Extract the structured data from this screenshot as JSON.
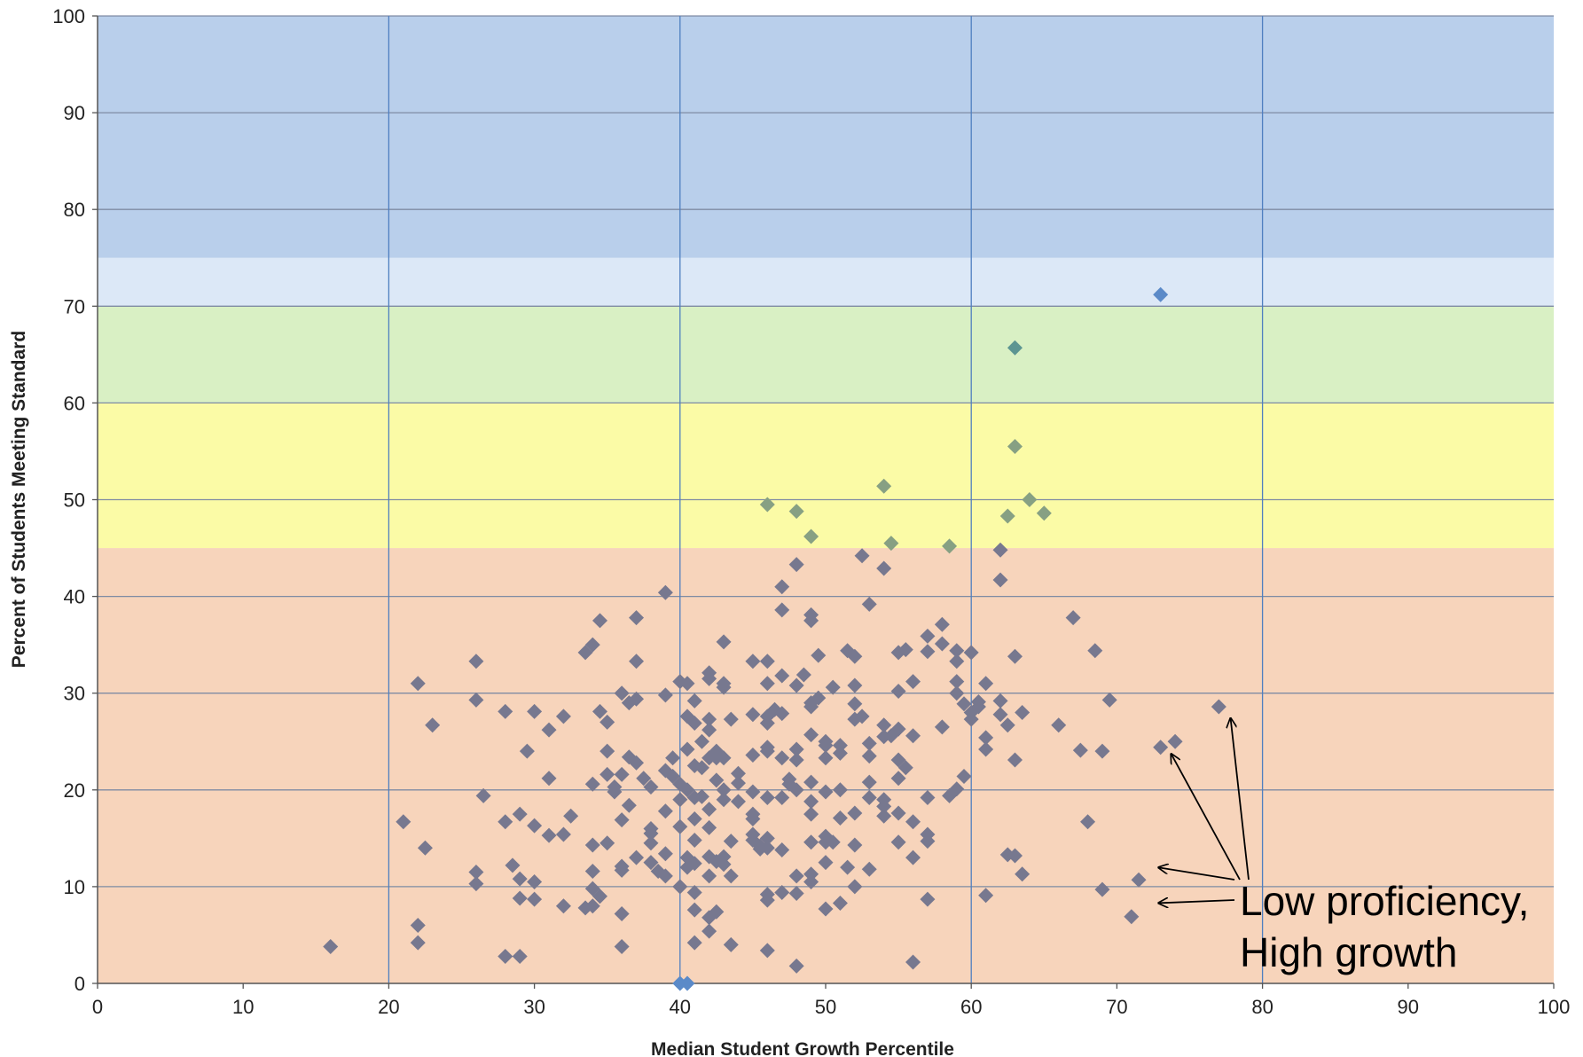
{
  "chart_data": {
    "type": "scatter",
    "title": "",
    "xlabel": "Median Student Growth Percentile",
    "ylabel": "Percent of Students Meeting Standard",
    "xlim": [
      0,
      100
    ],
    "ylim": [
      0,
      100
    ],
    "x_ticks": [
      "0",
      "10",
      "20",
      "30",
      "40",
      "50",
      "60",
      "70",
      "80",
      "90",
      "100"
    ],
    "y_ticks": [
      "0",
      "10",
      "20",
      "30",
      "40",
      "50",
      "60",
      "70",
      "80",
      "90",
      "100"
    ],
    "grid": {
      "horizontal": true,
      "vertical_at": [
        20,
        40,
        60,
        80
      ]
    },
    "bands": [
      {
        "from": 0,
        "to": 45,
        "color": "#f7d4bb"
      },
      {
        "from": 45,
        "to": 60,
        "color": "#fbfba6"
      },
      {
        "from": 60,
        "to": 70,
        "color": "#d9f0c4"
      },
      {
        "from": 70,
        "to": 75,
        "color": "#dce8f7"
      },
      {
        "from": 75,
        "to": 100,
        "color": "#b9cfeb"
      }
    ],
    "colors": {
      "orange_band_point": "#77788f",
      "yellow_band_point": "#87a083",
      "green_band_point": "#5c9592",
      "top_band_point": "#5b8ac8",
      "grid_horizontal": "#7f8ba3",
      "grid_vertical": "#4f7fc0"
    },
    "points": [
      [
        16,
        3.8
      ],
      [
        21,
        16.7
      ],
      [
        22,
        31
      ],
      [
        22,
        6
      ],
      [
        22,
        4.2
      ],
      [
        22.5,
        14
      ],
      [
        23,
        26.7
      ],
      [
        26,
        33.3
      ],
      [
        26,
        29.3
      ],
      [
        26,
        11.5
      ],
      [
        26,
        10.3
      ],
      [
        26.5,
        19.4
      ],
      [
        28,
        28.1
      ],
      [
        28,
        16.7
      ],
      [
        28,
        2.8
      ],
      [
        28.5,
        12.2
      ],
      [
        29,
        17.5
      ],
      [
        29,
        10.8
      ],
      [
        29,
        8.8
      ],
      [
        29,
        2.8
      ],
      [
        29.5,
        24
      ],
      [
        30,
        28.1
      ],
      [
        30,
        16.3
      ],
      [
        30,
        10.5
      ],
      [
        30,
        8.7
      ],
      [
        31,
        26.2
      ],
      [
        31,
        21.2
      ],
      [
        31,
        15.3
      ],
      [
        32,
        27.6
      ],
      [
        32,
        15.4
      ],
      [
        32,
        8
      ],
      [
        32.5,
        17.3
      ],
      [
        33.5,
        34.2
      ],
      [
        33.5,
        7.8
      ],
      [
        34,
        35
      ],
      [
        34,
        20.6
      ],
      [
        34,
        14.3
      ],
      [
        34,
        11.6
      ],
      [
        34,
        9.8
      ],
      [
        34,
        8
      ],
      [
        34.5,
        37.5
      ],
      [
        34.5,
        28.1
      ],
      [
        34.5,
        9
      ],
      [
        35,
        27
      ],
      [
        35,
        24
      ],
      [
        35,
        21.6
      ],
      [
        35,
        14.5
      ],
      [
        35.5,
        20.3
      ],
      [
        35.5,
        19.8
      ],
      [
        36,
        30
      ],
      [
        36,
        21.6
      ],
      [
        36,
        16.9
      ],
      [
        36,
        12.1
      ],
      [
        36,
        11.7
      ],
      [
        36,
        7.2
      ],
      [
        36,
        3.8
      ],
      [
        36.5,
        29
      ],
      [
        36.5,
        23.4
      ],
      [
        36.5,
        18.4
      ],
      [
        37,
        37.8
      ],
      [
        37,
        33.3
      ],
      [
        37,
        29.4
      ],
      [
        37,
        22.8
      ],
      [
        37,
        13
      ],
      [
        37.5,
        21.2
      ],
      [
        38,
        20.3
      ],
      [
        38,
        16
      ],
      [
        38,
        15.5
      ],
      [
        38,
        14.5
      ],
      [
        38,
        12.5
      ],
      [
        38.5,
        11.6
      ],
      [
        39,
        40.4
      ],
      [
        39,
        29.8
      ],
      [
        39,
        22
      ],
      [
        39,
        17.8
      ],
      [
        39,
        13.4
      ],
      [
        39,
        11.1
      ],
      [
        39.5,
        23.3
      ],
      [
        39.5,
        21.4
      ],
      [
        40,
        31.2
      ],
      [
        40,
        20.6
      ],
      [
        40,
        19
      ],
      [
        40,
        16.2
      ],
      [
        40,
        10
      ],
      [
        40,
        0
      ],
      [
        40.5,
        31
      ],
      [
        40.5,
        27.6
      ],
      [
        40.5,
        24.2
      ],
      [
        40.5,
        20
      ],
      [
        40.5,
        13
      ],
      [
        40.5,
        12
      ],
      [
        40.5,
        0
      ],
      [
        41,
        29.2
      ],
      [
        41,
        26.9
      ],
      [
        41,
        22.5
      ],
      [
        41,
        19.2
      ],
      [
        41,
        17
      ],
      [
        41,
        14.8
      ],
      [
        41,
        12.4
      ],
      [
        41,
        9.4
      ],
      [
        41,
        7.6
      ],
      [
        41,
        4.2
      ],
      [
        41.5,
        25
      ],
      [
        41.5,
        22.3
      ],
      [
        41.5,
        19.3
      ],
      [
        42,
        32.1
      ],
      [
        42,
        31.5
      ],
      [
        42,
        27.3
      ],
      [
        42,
        26.2
      ],
      [
        42,
        23.3
      ],
      [
        42,
        18
      ],
      [
        42,
        16.1
      ],
      [
        42,
        13.1
      ],
      [
        42,
        11.1
      ],
      [
        42,
        6.8
      ],
      [
        42,
        5.4
      ],
      [
        42.5,
        24
      ],
      [
        42.5,
        23.3
      ],
      [
        42.5,
        21
      ],
      [
        42.5,
        12.6
      ],
      [
        42.5,
        7.4
      ],
      [
        43,
        35.3
      ],
      [
        43,
        31
      ],
      [
        43,
        30.6
      ],
      [
        43,
        23.3
      ],
      [
        43,
        20
      ],
      [
        43,
        19
      ],
      [
        43,
        13.1
      ],
      [
        43,
        12.3
      ],
      [
        43.5,
        27.3
      ],
      [
        43.5,
        14.7
      ],
      [
        43.5,
        11.1
      ],
      [
        43.5,
        4
      ],
      [
        44,
        21.7
      ],
      [
        44,
        20.7
      ],
      [
        44,
        18.8
      ],
      [
        45,
        33.3
      ],
      [
        45,
        27.8
      ],
      [
        45,
        23.6
      ],
      [
        45,
        19.8
      ],
      [
        45,
        17.5
      ],
      [
        45,
        17
      ],
      [
        45,
        15.4
      ],
      [
        45,
        14.8
      ],
      [
        45.5,
        14.2
      ],
      [
        45.5,
        13.9
      ],
      [
        46,
        33.3
      ],
      [
        46,
        31
      ],
      [
        46,
        27.6
      ],
      [
        46,
        26.9
      ],
      [
        46,
        24.4
      ],
      [
        46,
        24
      ],
      [
        46,
        19.2
      ],
      [
        46,
        15
      ],
      [
        46,
        14
      ],
      [
        46,
        9.2
      ],
      [
        46,
        8.6
      ],
      [
        46,
        3.4
      ],
      [
        46,
        49.5
      ],
      [
        46.5,
        28.3
      ],
      [
        47,
        41
      ],
      [
        47,
        38.6
      ],
      [
        47,
        31.8
      ],
      [
        47,
        27.9
      ],
      [
        47,
        23.3
      ],
      [
        47,
        19.2
      ],
      [
        47,
        13.8
      ],
      [
        47,
        9.4
      ],
      [
        47.5,
        21.1
      ],
      [
        47.5,
        20.6
      ],
      [
        48,
        43.3
      ],
      [
        48,
        30.8
      ],
      [
        48,
        24.2
      ],
      [
        48,
        23.1
      ],
      [
        48,
        20
      ],
      [
        48,
        11.1
      ],
      [
        48,
        9.3
      ],
      [
        48,
        1.8
      ],
      [
        48,
        48.8
      ],
      [
        48.5,
        31.9
      ],
      [
        49,
        38.1
      ],
      [
        49,
        37.5
      ],
      [
        49,
        29
      ],
      [
        49,
        28.6
      ],
      [
        49,
        25.7
      ],
      [
        49,
        20.8
      ],
      [
        49,
        18.8
      ],
      [
        49,
        17.5
      ],
      [
        49,
        14.6
      ],
      [
        49,
        11.3
      ],
      [
        49,
        10.5
      ],
      [
        49,
        46.2
      ],
      [
        49.5,
        29.5
      ],
      [
        49.5,
        33.9
      ],
      [
        50,
        25
      ],
      [
        50,
        24.6
      ],
      [
        50,
        23.3
      ],
      [
        50,
        19.8
      ],
      [
        50,
        15.2
      ],
      [
        50,
        14.6
      ],
      [
        50,
        12.5
      ],
      [
        50,
        7.7
      ],
      [
        50.5,
        30.6
      ],
      [
        50.5,
        14.6
      ],
      [
        51,
        24.6
      ],
      [
        51,
        23.8
      ],
      [
        51,
        20
      ],
      [
        51,
        17.1
      ],
      [
        51,
        8.3
      ],
      [
        51.5,
        34.4
      ],
      [
        51.5,
        12
      ],
      [
        52,
        33.8
      ],
      [
        52,
        30.8
      ],
      [
        52,
        28.9
      ],
      [
        52,
        27.3
      ],
      [
        52,
        17.6
      ],
      [
        52,
        14.3
      ],
      [
        52,
        10
      ],
      [
        52.5,
        44.2
      ],
      [
        52.5,
        27.6
      ],
      [
        53,
        39.2
      ],
      [
        53,
        24.8
      ],
      [
        53,
        23.5
      ],
      [
        53,
        20.8
      ],
      [
        53,
        19.2
      ],
      [
        53,
        11.8
      ],
      [
        54,
        42.9
      ],
      [
        54,
        26.7
      ],
      [
        54,
        25.5
      ],
      [
        54,
        19
      ],
      [
        54,
        18.3
      ],
      [
        54,
        17.3
      ],
      [
        54,
        51.4
      ],
      [
        54.5,
        45.5
      ],
      [
        54.5,
        25.6
      ],
      [
        55,
        34.2
      ],
      [
        55,
        30.2
      ],
      [
        55,
        26.3
      ],
      [
        55,
        23.1
      ],
      [
        55,
        21.2
      ],
      [
        55,
        17.6
      ],
      [
        55,
        14.6
      ],
      [
        55.5,
        34.5
      ],
      [
        55.5,
        22.3
      ],
      [
        56,
        31.2
      ],
      [
        56,
        25.6
      ],
      [
        56,
        16.7
      ],
      [
        56,
        13
      ],
      [
        56,
        2.2
      ],
      [
        57,
        35.9
      ],
      [
        57,
        34.3
      ],
      [
        57,
        19.2
      ],
      [
        57,
        15.4
      ],
      [
        57,
        14.7
      ],
      [
        57,
        8.7
      ],
      [
        58,
        37.1
      ],
      [
        58,
        35.1
      ],
      [
        58,
        26.5
      ],
      [
        58.5,
        19.4
      ],
      [
        58.5,
        45.2
      ],
      [
        59,
        34.4
      ],
      [
        59,
        33.3
      ],
      [
        59,
        31.2
      ],
      [
        59,
        30
      ],
      [
        59,
        20.1
      ],
      [
        59.5,
        28.9
      ],
      [
        59.5,
        21.4
      ],
      [
        60,
        34.2
      ],
      [
        60,
        27.3
      ],
      [
        60,
        28
      ],
      [
        60.5,
        29.1
      ],
      [
        60.5,
        28.6
      ],
      [
        61,
        31
      ],
      [
        61,
        25.4
      ],
      [
        61,
        24.2
      ],
      [
        61,
        9.1
      ],
      [
        62,
        44.8
      ],
      [
        62,
        41.7
      ],
      [
        62,
        29.2
      ],
      [
        62,
        27.8
      ],
      [
        62.5,
        26.7
      ],
      [
        62.5,
        13.3
      ],
      [
        62.5,
        48.3
      ],
      [
        63,
        33.8
      ],
      [
        63,
        23.1
      ],
      [
        63,
        13.2
      ],
      [
        63,
        55.5
      ],
      [
        63,
        65.7
      ],
      [
        63.5,
        28
      ],
      [
        63.5,
        11.3
      ],
      [
        64,
        50
      ],
      [
        65,
        48.6
      ],
      [
        66,
        26.7
      ],
      [
        67,
        37.8
      ],
      [
        67.5,
        24.1
      ],
      [
        68,
        16.7
      ],
      [
        68.5,
        34.4
      ],
      [
        69,
        24
      ],
      [
        69,
        9.7
      ],
      [
        69.5,
        29.3
      ],
      [
        71,
        6.9
      ],
      [
        71.5,
        10.7
      ],
      [
        73,
        24.4
      ],
      [
        74,
        25
      ],
      [
        77,
        28.6
      ],
      [
        73,
        71.2
      ]
    ],
    "annotations": [
      {
        "text_lines": [
          "Low proficiency,",
          "High growth"
        ],
        "arrows_to": [
          [
            73.7,
            23.8
          ],
          [
            77.8,
            27.5
          ],
          [
            72.8,
            12.0
          ],
          [
            72.8,
            8.3
          ]
        ]
      }
    ]
  }
}
